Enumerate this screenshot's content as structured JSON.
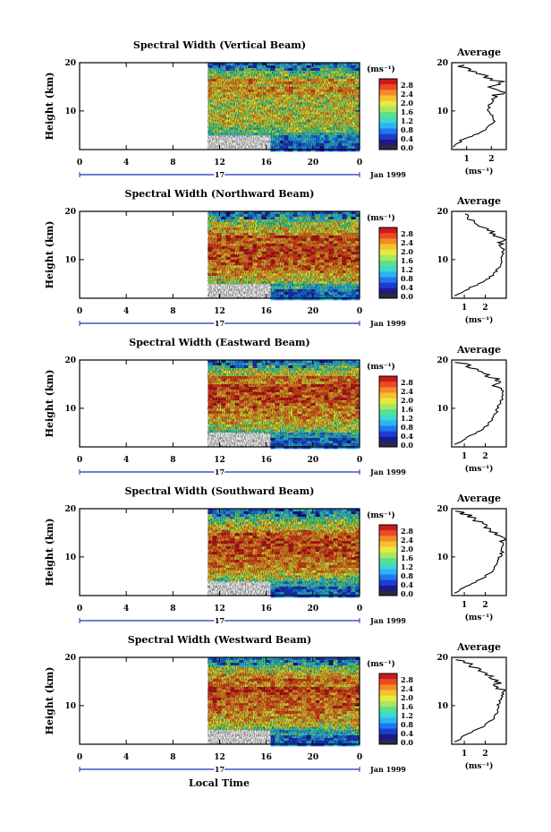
{
  "chart_data": [
    {
      "type": "heatmap",
      "title": "Spectral Width (Vertical Beam)",
      "ylabel": "Height (km)",
      "xticks": [
        "0",
        "4",
        "8",
        "12",
        "16",
        "20",
        "0"
      ],
      "yticks": [
        "20",
        "10"
      ],
      "ylim": [
        2,
        20
      ],
      "day_label": "17",
      "date_label": "Jan 1999",
      "data_start_hour": 11,
      "low_cutoff_until_hour": 16,
      "color_scale": {
        "unit": "(ms⁻¹)",
        "ticks": [
          "2.8",
          "2.4",
          "2.0",
          "1.6",
          "1.2",
          "0.8",
          "0.4",
          "0.0"
        ]
      },
      "profile": {
        "title": "Average",
        "xlabel": "(ms⁻¹)",
        "xticks": [
          "1",
          "2"
        ],
        "yticks": [
          "20",
          "10"
        ],
        "xlim": [
          0.4,
          2.6
        ],
        "heights": [
          2.5,
          4,
          5,
          6,
          7,
          8,
          9,
          10,
          11,
          12,
          13,
          14,
          15,
          16,
          17,
          18,
          19,
          19.5
        ],
        "values": [
          0.5,
          0.8,
          1.3,
          1.7,
          1.9,
          2.1,
          2.0,
          1.9,
          1.9,
          2.0,
          2.2,
          2.4,
          2.0,
          2.4,
          1.8,
          1.5,
          1.0,
          0.7
        ]
      }
    },
    {
      "type": "heatmap",
      "title": "Spectral Width (Northward Beam)",
      "ylabel": "Height (km)",
      "xticks": [
        "0",
        "4",
        "8",
        "12",
        "16",
        "20",
        "0"
      ],
      "yticks": [
        "20",
        "10"
      ],
      "ylim": [
        2,
        20
      ],
      "day_label": "17",
      "date_label": "Jan 1999",
      "data_start_hour": 11,
      "low_cutoff_until_hour": 16,
      "color_scale": {
        "unit": "(ms⁻¹)",
        "ticks": [
          "2.8",
          "2.4",
          "2.0",
          "1.6",
          "1.2",
          "0.8",
          "0.4",
          "0.0"
        ]
      },
      "profile": {
        "title": "Average",
        "xlabel": "(ms⁻¹)",
        "xticks": [
          "1",
          "2"
        ],
        "yticks": [
          "20",
          "10"
        ],
        "xlim": [
          0.4,
          3.0
        ],
        "heights": [
          2.5,
          4,
          5,
          6,
          7,
          8,
          9,
          10,
          11,
          12,
          13,
          14,
          15,
          16,
          17,
          18,
          19,
          19.5
        ],
        "values": [
          0.6,
          1.2,
          1.7,
          2.1,
          2.4,
          2.6,
          2.7,
          2.8,
          2.8,
          2.9,
          2.7,
          2.8,
          2.4,
          2.2,
          1.9,
          1.5,
          1.1,
          0.8
        ]
      }
    },
    {
      "type": "heatmap",
      "title": "Spectral Width (Eastward Beam)",
      "ylabel": "Height (km)",
      "xticks": [
        "0",
        "4",
        "8",
        "12",
        "16",
        "20",
        "0"
      ],
      "yticks": [
        "20",
        "10"
      ],
      "ylim": [
        2,
        20
      ],
      "day_label": "17",
      "date_label": "Jan 1999",
      "data_start_hour": 11,
      "low_cutoff_until_hour": 16,
      "color_scale": {
        "unit": "(ms⁻¹)",
        "ticks": [
          "2.8",
          "2.4",
          "2.0",
          "1.6",
          "1.2",
          "0.8",
          "0.4",
          "0.0"
        ]
      },
      "profile": {
        "title": "Average",
        "xlabel": "(ms⁻¹)",
        "xticks": [
          "1",
          "2"
        ],
        "yticks": [
          "20",
          "10"
        ],
        "xlim": [
          0.4,
          3.0
        ],
        "heights": [
          2.5,
          4,
          5,
          6,
          7,
          8,
          9,
          10,
          11,
          12,
          13,
          14,
          15,
          16,
          17,
          18,
          19,
          19.5
        ],
        "values": [
          0.6,
          1.1,
          1.6,
          2.0,
          2.2,
          2.4,
          2.5,
          2.6,
          2.7,
          2.8,
          2.8,
          2.9,
          2.4,
          2.6,
          2.0,
          1.6,
          1.1,
          0.8
        ]
      }
    },
    {
      "type": "heatmap",
      "title": "Spectral Width (Southward Beam)",
      "ylabel": "Height (km)",
      "xticks": [
        "0",
        "4",
        "8",
        "12",
        "16",
        "20",
        "0"
      ],
      "yticks": [
        "20",
        "10"
      ],
      "ylim": [
        2,
        20
      ],
      "day_label": "17",
      "date_label": "Jan 1999",
      "data_start_hour": 11,
      "low_cutoff_until_hour": 16,
      "color_scale": {
        "unit": "(ms⁻¹)",
        "ticks": [
          "2.8",
          "2.4",
          "2.0",
          "1.6",
          "1.2",
          "0.8",
          "0.4",
          "0.0"
        ]
      },
      "profile": {
        "title": "Average",
        "xlabel": "(ms⁻¹)",
        "xticks": [
          "1",
          "2"
        ],
        "yticks": [
          "20",
          "10"
        ],
        "xlim": [
          0.4,
          3.0
        ],
        "heights": [
          2.5,
          4,
          5,
          6,
          7,
          8,
          9,
          10,
          11,
          12,
          13,
          14,
          15,
          16,
          17,
          18,
          19,
          19.5
        ],
        "values": [
          0.6,
          1.1,
          1.6,
          2.0,
          2.3,
          2.5,
          2.6,
          2.7,
          2.8,
          2.8,
          2.9,
          2.7,
          2.4,
          2.1,
          1.8,
          1.4,
          1.0,
          0.8
        ]
      }
    },
    {
      "type": "heatmap",
      "title": "Spectral Width (Westward Beam)",
      "ylabel": "Height (km)",
      "xticks": [
        "0",
        "4",
        "8",
        "12",
        "16",
        "20",
        "0"
      ],
      "yticks": [
        "20",
        "10"
      ],
      "ylim": [
        2,
        20
      ],
      "day_label": "17",
      "date_label": "Jan 1999",
      "data_start_hour": 11,
      "low_cutoff_until_hour": 16,
      "color_scale": {
        "unit": "(ms⁻¹)",
        "ticks": [
          "2.8",
          "2.4",
          "2.0",
          "1.6",
          "1.2",
          "0.8",
          "0.4",
          "0.0"
        ]
      },
      "profile": {
        "title": "Average",
        "xlabel": "(ms⁻¹)",
        "xticks": [
          "1",
          "2"
        ],
        "yticks": [
          "20",
          "10"
        ],
        "xlim": [
          0.4,
          3.0
        ],
        "heights": [
          2.5,
          4,
          5,
          6,
          7,
          8,
          9,
          10,
          11,
          12,
          13,
          14,
          15,
          16,
          17,
          18,
          19,
          19.5
        ],
        "values": [
          0.6,
          1.1,
          1.6,
          2.0,
          2.3,
          2.5,
          2.6,
          2.6,
          2.7,
          2.8,
          2.9,
          2.5,
          2.7,
          2.3,
          1.9,
          1.5,
          1.1,
          0.8
        ]
      }
    }
  ],
  "footer": {
    "xlabel": "Local Time"
  },
  "colors": {
    "scale": [
      "#1a1a8c",
      "#1f3cd0",
      "#1e78f0",
      "#2eb4f0",
      "#3ed8d0",
      "#5ce08a",
      "#a8e860",
      "#e6ea40",
      "#f7c030",
      "#f58a28",
      "#ee4a22",
      "#c81c1c"
    ],
    "cutoff_dark": "#2a2a40",
    "time_axis": "#1f2fc0"
  }
}
